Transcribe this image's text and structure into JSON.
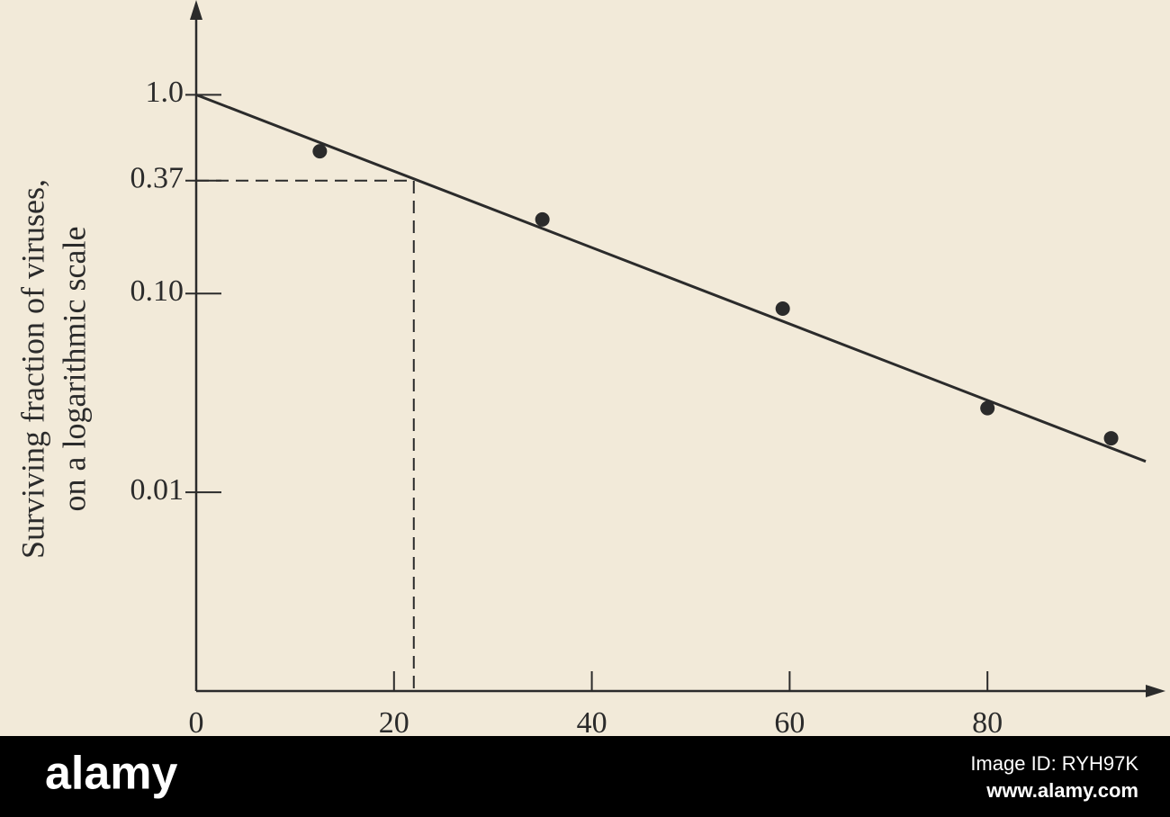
{
  "chart_data": {
    "type": "scatter",
    "y_label": [
      "Surviving fraction of viruses,",
      "on a logarithmic scale"
    ],
    "x": [
      12.5,
      35,
      59.3,
      80,
      92.5
    ],
    "values": [
      0.52,
      0.236,
      0.084,
      0.0265,
      0.0187
    ],
    "color": "#2b2b2b",
    "fit_line": {
      "x": [
        0,
        96
      ],
      "values": [
        1,
        0.0143
      ]
    },
    "guide": {
      "x": 22,
      "y": 0.37
    },
    "xlim": [
      0,
      98
    ],
    "ylim": [
      0.001,
      3
    ],
    "ylog": true,
    "xticks": [
      0,
      20,
      40,
      60,
      80
    ],
    "yticks": [
      {
        "value": 1,
        "label": "1.0"
      },
      0.37,
      {
        "value": 0.1,
        "label": "0.10"
      },
      0.01
    ]
  },
  "banner": {
    "logo": "alamy",
    "image_id": "Image ID: RYH97K",
    "url": "www.alamy.com"
  }
}
